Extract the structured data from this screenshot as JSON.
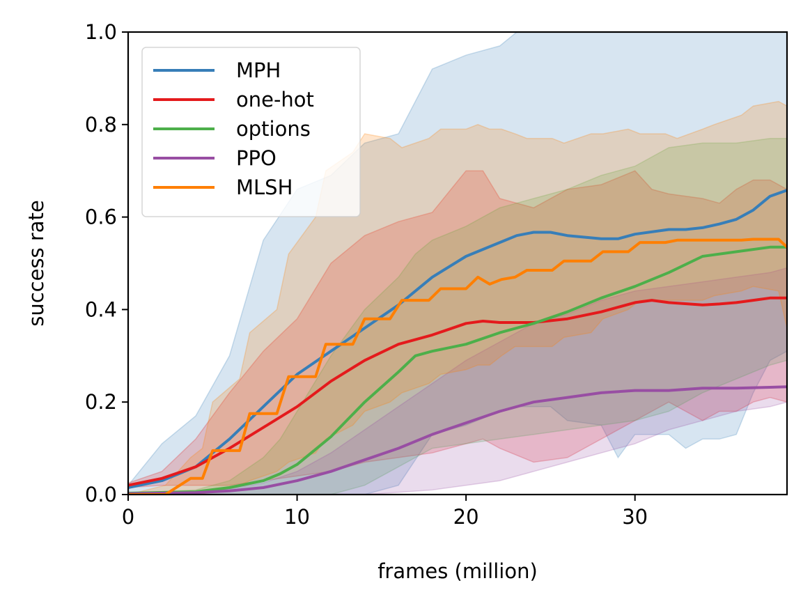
{
  "chart_data": {
    "type": "line",
    "title": "",
    "xlabel": "frames (million)",
    "ylabel": "success rate",
    "xlim": [
      0,
      39
    ],
    "ylim": [
      0,
      1.0
    ],
    "xticks": [
      0,
      10,
      20,
      30
    ],
    "xtick_labels": [
      "0",
      "10",
      "20",
      "30"
    ],
    "yticks": [
      0.0,
      0.2,
      0.4,
      0.6,
      0.8,
      1.0
    ],
    "ytick_labels": [
      "0.0",
      "0.2",
      "0.4",
      "0.6",
      "0.8",
      "1.0"
    ],
    "grid": false,
    "legend_position": "upper-left",
    "series": [
      {
        "name": "MPH",
        "color": "#377eb8",
        "x": [
          0,
          2,
          4,
          6,
          8,
          10,
          12,
          14,
          16,
          18,
          20,
          22,
          23,
          24,
          25,
          26,
          28,
          29,
          30,
          32,
          33,
          34,
          35,
          36,
          37,
          38,
          39
        ],
        "y": [
          0.015,
          0.03,
          0.06,
          0.12,
          0.19,
          0.26,
          0.31,
          0.36,
          0.41,
          0.47,
          0.515,
          0.545,
          0.56,
          0.567,
          0.567,
          0.56,
          0.553,
          0.553,
          0.563,
          0.573,
          0.573,
          0.577,
          0.585,
          0.595,
          0.615,
          0.645,
          0.658
        ],
        "upper": [
          0.02,
          0.11,
          0.17,
          0.3,
          0.55,
          0.66,
          0.69,
          0.76,
          0.78,
          0.92,
          0.95,
          0.97,
          1.0,
          1.0,
          1.0,
          1.0,
          1.0,
          1.0,
          1.0,
          1.0,
          1.0,
          1.0,
          1.0,
          1.0,
          1.0,
          1.0,
          1.0
        ],
        "lower": [
          0,
          0,
          0,
          0,
          0,
          0,
          0,
          0,
          0.02,
          0.13,
          0.15,
          0.18,
          0.19,
          0.19,
          0.19,
          0.16,
          0.15,
          0.08,
          0.13,
          0.13,
          0.1,
          0.12,
          0.12,
          0.13,
          0.22,
          0.29,
          0.31
        ]
      },
      {
        "name": "one-hot",
        "color": "#e41a1c",
        "x": [
          0,
          2,
          4,
          6,
          8,
          10,
          12,
          14,
          16,
          18,
          20,
          21,
          22,
          24,
          26,
          28,
          30,
          31,
          32,
          34,
          35,
          36,
          37,
          38,
          39
        ],
        "y": [
          0.02,
          0.035,
          0.06,
          0.1,
          0.145,
          0.19,
          0.245,
          0.29,
          0.325,
          0.345,
          0.37,
          0.375,
          0.372,
          0.372,
          0.38,
          0.395,
          0.415,
          0.42,
          0.415,
          0.41,
          0.412,
          0.415,
          0.42,
          0.425,
          0.425
        ],
        "upper": [
          0.025,
          0.05,
          0.12,
          0.22,
          0.31,
          0.38,
          0.5,
          0.56,
          0.59,
          0.61,
          0.7,
          0.7,
          0.64,
          0.62,
          0.66,
          0.67,
          0.7,
          0.66,
          0.65,
          0.64,
          0.63,
          0.66,
          0.68,
          0.68,
          0.66
        ],
        "lower": [
          0.015,
          0.02,
          0.02,
          0.02,
          0.03,
          0.04,
          0.05,
          0.07,
          0.08,
          0.09,
          0.11,
          0.12,
          0.1,
          0.07,
          0.08,
          0.12,
          0.16,
          0.18,
          0.2,
          0.16,
          0.18,
          0.18,
          0.2,
          0.21,
          0.2
        ]
      },
      {
        "name": "options",
        "color": "#4daf4a",
        "x": [
          0,
          4,
          6,
          8,
          9,
          10,
          12,
          14,
          16,
          17,
          18,
          20,
          22,
          24,
          26,
          28,
          30,
          32,
          34,
          36,
          38,
          39
        ],
        "y": [
          0.003,
          0.006,
          0.015,
          0.03,
          0.045,
          0.065,
          0.125,
          0.2,
          0.265,
          0.3,
          0.31,
          0.325,
          0.35,
          0.37,
          0.395,
          0.425,
          0.45,
          0.48,
          0.515,
          0.525,
          0.535,
          0.535
        ],
        "upper": [
          0.003,
          0.01,
          0.03,
          0.08,
          0.12,
          0.18,
          0.3,
          0.4,
          0.47,
          0.52,
          0.55,
          0.58,
          0.62,
          0.64,
          0.66,
          0.69,
          0.71,
          0.75,
          0.76,
          0.76,
          0.77,
          0.77
        ],
        "lower": [
          0,
          0,
          0,
          0,
          0,
          0,
          0,
          0.02,
          0.06,
          0.08,
          0.1,
          0.11,
          0.12,
          0.13,
          0.14,
          0.15,
          0.16,
          0.18,
          0.22,
          0.25,
          0.28,
          0.29
        ]
      },
      {
        "name": "PPO",
        "color": "#984ea3",
        "x": [
          0,
          4,
          6,
          8,
          10,
          12,
          14,
          16,
          18,
          20,
          22,
          24,
          26,
          28,
          30,
          32,
          34,
          36,
          38,
          39
        ],
        "y": [
          0.002,
          0.004,
          0.008,
          0.015,
          0.03,
          0.05,
          0.075,
          0.1,
          0.13,
          0.155,
          0.18,
          0.2,
          0.21,
          0.22,
          0.225,
          0.225,
          0.23,
          0.23,
          0.232,
          0.233
        ],
        "upper": [
          0.003,
          0.006,
          0.012,
          0.025,
          0.05,
          0.09,
          0.14,
          0.19,
          0.24,
          0.29,
          0.33,
          0.37,
          0.39,
          0.42,
          0.44,
          0.45,
          0.46,
          0.47,
          0.48,
          0.49
        ],
        "lower": [
          0,
          0,
          0,
          0,
          0,
          0,
          0,
          0.005,
          0.01,
          0.02,
          0.03,
          0.05,
          0.07,
          0.09,
          0.11,
          0.14,
          0.16,
          0.18,
          0.19,
          0.2
        ]
      },
      {
        "name": "MLSH",
        "color": "#ff7f00",
        "x": [
          0,
          2.2,
          3.7,
          4.4,
          5.0,
          6.6,
          7.2,
          8.8,
          9.5,
          11.1,
          11.7,
          13.3,
          14.0,
          15.5,
          16.2,
          17.8,
          18.5,
          20.0,
          20.7,
          21.4,
          22.1,
          22.9,
          23.6,
          25.1,
          25.8,
          27.4,
          28.1,
          29.6,
          30.3,
          31.8,
          32.5,
          34.0,
          34.7,
          36.3,
          37.0,
          38.5,
          39
        ],
        "y": [
          0,
          0,
          0.035,
          0.035,
          0.095,
          0.095,
          0.175,
          0.175,
          0.255,
          0.255,
          0.325,
          0.325,
          0.38,
          0.38,
          0.42,
          0.42,
          0.445,
          0.445,
          0.47,
          0.455,
          0.465,
          0.47,
          0.485,
          0.485,
          0.505,
          0.505,
          0.525,
          0.525,
          0.545,
          0.545,
          0.55,
          0.55,
          0.55,
          0.55,
          0.552,
          0.552,
          0.535
        ],
        "upper": [
          0,
          0.02,
          0.08,
          0.1,
          0.2,
          0.25,
          0.35,
          0.4,
          0.52,
          0.6,
          0.7,
          0.74,
          0.78,
          0.77,
          0.75,
          0.77,
          0.79,
          0.79,
          0.8,
          0.79,
          0.79,
          0.78,
          0.77,
          0.77,
          0.76,
          0.78,
          0.78,
          0.79,
          0.78,
          0.78,
          0.77,
          0.79,
          0.8,
          0.82,
          0.84,
          0.85,
          0.84
        ],
        "lower": [
          0,
          0,
          0,
          0,
          0.01,
          0.02,
          0.03,
          0.05,
          0.07,
          0.09,
          0.12,
          0.15,
          0.18,
          0.2,
          0.22,
          0.24,
          0.26,
          0.27,
          0.28,
          0.28,
          0.3,
          0.32,
          0.32,
          0.32,
          0.34,
          0.35,
          0.38,
          0.4,
          0.42,
          0.42,
          0.42,
          0.42,
          0.43,
          0.44,
          0.45,
          0.44,
          0.36
        ]
      }
    ]
  }
}
